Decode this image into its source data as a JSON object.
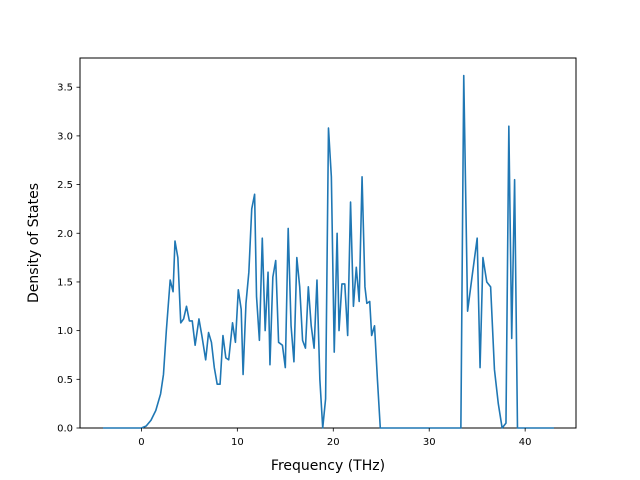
{
  "chart_data": {
    "type": "line",
    "title": "",
    "xlabel": "Frequency (THz)",
    "ylabel": "Density of States",
    "xlim": [
      -6.4,
      45.3
    ],
    "ylim": [
      0.0,
      3.8
    ],
    "xticks": [
      0,
      10,
      20,
      30,
      40
    ],
    "xtick_labels": [
      "0",
      "10",
      "20",
      "30",
      "40"
    ],
    "yticks": [
      0.0,
      0.5,
      1.0,
      1.5,
      2.0,
      2.5,
      3.0,
      3.5
    ],
    "ytick_labels": [
      "0.0",
      "0.5",
      "1.0",
      "1.5",
      "2.0",
      "2.5",
      "3.0",
      "3.5"
    ],
    "grid": false,
    "legend": "none",
    "colors": {
      "line": "#1f77b4",
      "axes": "#000000",
      "background": "#ffffff"
    },
    "series": [
      {
        "x": [
          -4.0,
          0.0,
          0.5,
          1.0,
          1.5,
          2.0,
          2.3,
          2.6,
          3.0,
          3.3,
          3.5,
          3.8,
          4.1,
          4.4,
          4.7,
          5.0,
          5.3,
          5.6,
          6.0,
          6.3,
          6.7,
          7.0,
          7.3,
          7.6,
          7.9,
          8.2,
          8.5,
          8.8,
          9.1,
          9.5,
          9.8,
          10.1,
          10.4,
          10.6,
          10.9,
          11.2,
          11.5,
          11.8,
          12.0,
          12.3,
          12.6,
          12.9,
          13.2,
          13.4,
          13.7,
          14.0,
          14.3,
          14.7,
          15.0,
          15.3,
          15.6,
          15.9,
          16.2,
          16.5,
          16.8,
          17.1,
          17.4,
          17.7,
          18.0,
          18.3,
          18.6,
          18.9,
          19.2,
          19.5,
          19.8,
          20.1,
          20.4,
          20.6,
          20.9,
          21.2,
          21.5,
          21.8,
          22.1,
          22.4,
          22.7,
          23.0,
          23.3,
          23.5,
          23.8,
          24.0,
          24.3,
          24.6,
          24.9,
          25.2,
          25.5,
          25.8,
          26.0,
          33.3,
          33.6,
          34.0,
          34.5,
          35.0,
          35.3,
          35.6,
          36.0,
          36.4,
          36.8,
          37.2,
          37.6,
          38.0,
          38.3,
          38.6,
          38.9,
          39.2,
          39.5,
          43.0
        ],
        "values": [
          0.0,
          0.0,
          0.02,
          0.08,
          0.18,
          0.35,
          0.55,
          1.0,
          1.52,
          1.4,
          1.92,
          1.75,
          1.08,
          1.12,
          1.25,
          1.1,
          1.1,
          0.85,
          1.12,
          0.95,
          0.7,
          0.98,
          0.88,
          0.62,
          0.45,
          0.45,
          0.95,
          0.72,
          0.7,
          1.08,
          0.88,
          1.42,
          1.22,
          0.55,
          1.28,
          1.6,
          2.25,
          2.4,
          1.35,
          0.9,
          1.95,
          1.0,
          1.6,
          0.65,
          1.55,
          1.72,
          0.88,
          0.85,
          0.62,
          2.05,
          1.05,
          0.68,
          1.75,
          1.45,
          0.9,
          0.82,
          1.45,
          1.05,
          0.82,
          1.52,
          0.5,
          0.0,
          0.3,
          3.08,
          2.58,
          0.78,
          2.0,
          1.0,
          1.48,
          1.48,
          0.95,
          2.32,
          1.25,
          1.65,
          1.3,
          2.58,
          1.45,
          1.28,
          1.3,
          0.95,
          1.05,
          0.5,
          0.0,
          0.0,
          0.0,
          0.0,
          0.0,
          0.0,
          3.62,
          1.2,
          1.58,
          1.95,
          0.62,
          1.75,
          1.5,
          1.45,
          0.6,
          0.25,
          0.0,
          0.05,
          3.1,
          0.92,
          2.55,
          0.0,
          0.0,
          0.0
        ]
      }
    ]
  }
}
